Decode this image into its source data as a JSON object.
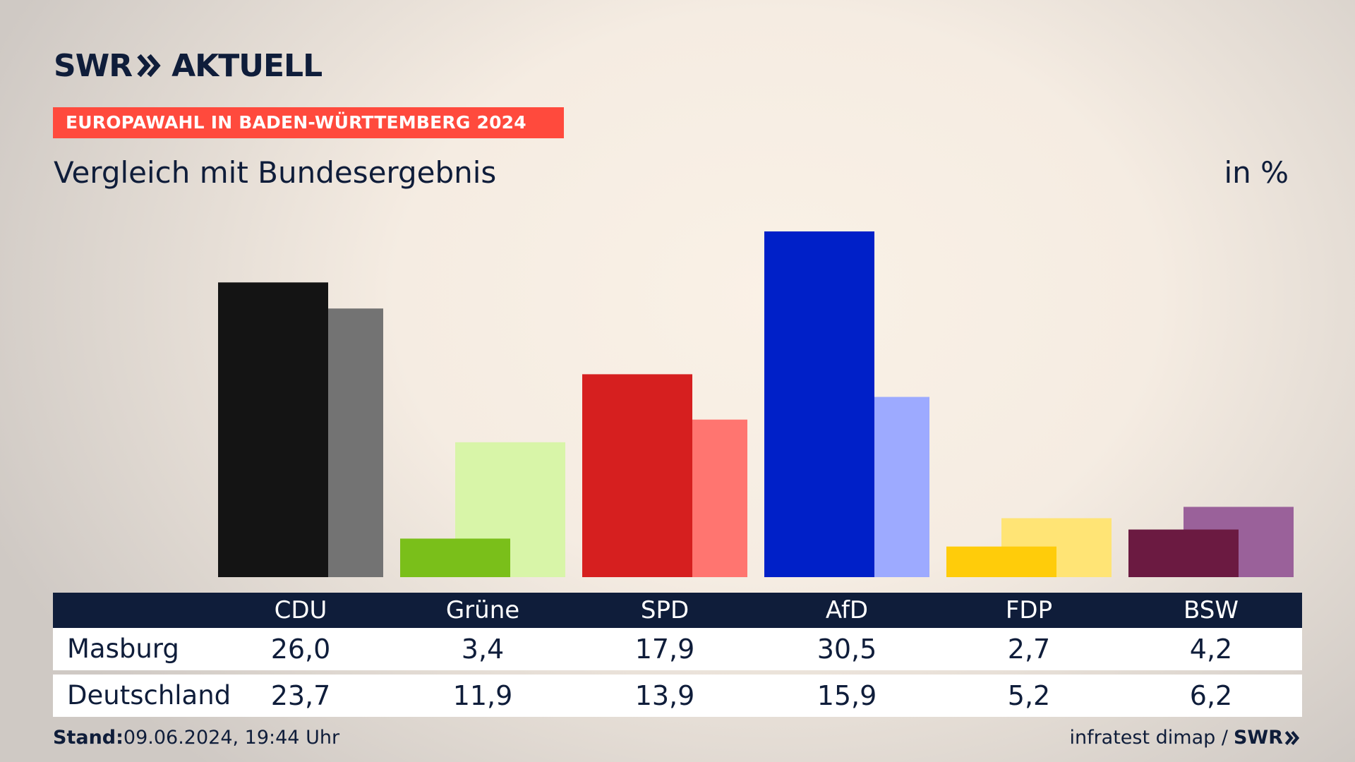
{
  "header": {
    "brand": "SWR",
    "product": "AKTUELL",
    "banner": "EUROPAWAHL IN BADEN-WÜRTTEMBERG 2024",
    "subtitle": "Vergleich mit Bundesergebnis",
    "unit": "in %"
  },
  "colors": {
    "banner": "#ff4a3d",
    "navy": "#0f1d3a"
  },
  "chart_data": {
    "type": "bar",
    "categories": [
      "CDU",
      "Grüne",
      "SPD",
      "AfD",
      "FDP",
      "BSW"
    ],
    "series": [
      {
        "name": "Masburg",
        "values": [
          26.0,
          3.4,
          17.9,
          30.5,
          2.7,
          4.2
        ],
        "labels": [
          "26,0",
          "3,4",
          "17,9",
          "30,5",
          "2,7",
          "4,2"
        ]
      },
      {
        "name": "Deutschland",
        "values": [
          23.7,
          11.9,
          13.9,
          15.9,
          5.2,
          6.2
        ],
        "labels": [
          "23,7",
          "11,9",
          "13,9",
          "15,9",
          "5,2",
          "6,2"
        ]
      }
    ],
    "colors_primary": [
      "#141414",
      "#7abf1a",
      "#d61f1f",
      "#0020c8",
      "#ffcc0a",
      "#6b1a41"
    ],
    "colors_secondary": [
      "#737373",
      "#d8f5a8",
      "#ff7570",
      "#9daaff",
      "#ffe475",
      "#9a619a"
    ],
    "ylim": [
      0,
      30.5
    ]
  },
  "footer": {
    "stand_label": "Stand:",
    "stand_value": "09.06.2024, 19:44 Uhr",
    "source": "infratest dimap /",
    "source_brand": "SWR"
  }
}
